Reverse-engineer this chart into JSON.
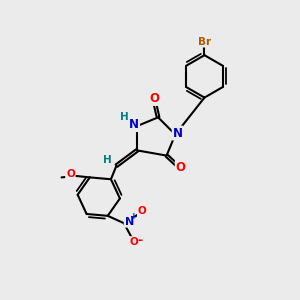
{
  "bg_color": "#ebebeb",
  "bond_color": "#000000",
  "bond_width": 1.5,
  "atom_colors": {
    "N": "#0000cc",
    "O": "#ff0000",
    "Br": "#b35900",
    "H": "#008080",
    "C": "#000000"
  },
  "font_size_atom": 8.5,
  "font_size_small": 7.0,
  "font_size_br": 7.5
}
